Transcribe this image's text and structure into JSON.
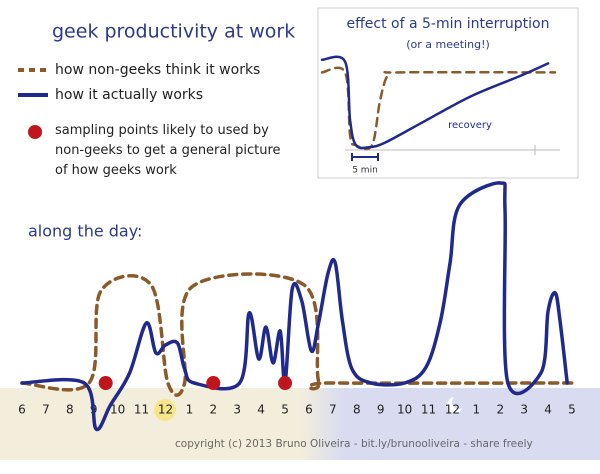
{
  "chart_data": [
    {
      "type": "line",
      "title": "geek productivity at work",
      "annotations": [
        "along the day:",
        "copyright (c) 2013 Bruno Oliveira - bit.ly/brunooliveira - share freely"
      ],
      "xlim": [
        6,
        29
      ],
      "xticks": [
        6,
        7,
        8,
        9,
        10,
        11,
        12,
        {
          "value": 13,
          "label": "1"
        },
        {
          "value": 14,
          "label": "2"
        },
        {
          "value": 15,
          "label": "3"
        },
        {
          "value": 16,
          "label": "4"
        },
        {
          "value": 17,
          "label": "5"
        },
        {
          "value": 18,
          "label": "6"
        },
        {
          "value": 19,
          "label": "7"
        },
        {
          "value": 20,
          "label": "8"
        },
        {
          "value": 21,
          "label": "9"
        },
        {
          "value": 22,
          "label": "10"
        },
        {
          "value": 23,
          "label": "11"
        },
        {
          "value": 24,
          "label": "12"
        },
        {
          "value": 25,
          "label": "1"
        },
        {
          "value": 26,
          "label": "2"
        },
        {
          "value": 27,
          "label": "3"
        },
        {
          "value": 28,
          "label": "4"
        },
        {
          "value": 29,
          "label": "5"
        }
      ],
      "ylim": [
        -30,
        100
      ],
      "series": [
        {
          "name": "how non-geeks think it works",
          "color": "#8b5a2b",
          "dashed": true,
          "x": [
            6.0,
            8.8,
            9.3,
            11.4,
            12.1,
            12.8,
            13.1,
            17.8,
            18.4,
            18.9,
            29.0
          ],
          "values": [
            0,
            0,
            46,
            49,
            0,
            0,
            48,
            49,
            1,
            0,
            0
          ]
        },
        {
          "name": "how it actually works",
          "color": "#1f2a8c",
          "x": [
            6.0,
            8.6,
            9.1,
            9.7,
            10.5,
            11.2,
            11.6,
            12.0,
            12.5,
            12.8,
            13.2,
            15.1,
            15.5,
            15.9,
            16.2,
            16.5,
            16.8,
            17.0,
            17.3,
            17.7,
            18.1,
            18.4,
            18.8,
            19.1,
            19.4,
            19.8,
            20.6,
            22.0,
            22.9,
            23.5,
            23.9,
            24.3,
            26.0,
            26.2,
            26.3,
            27.7,
            28.0,
            28.3,
            28.5,
            28.8
          ],
          "values": [
            0,
            0,
            -23,
            -11,
            5,
            30,
            15,
            19,
            20,
            7,
            0,
            0,
            35,
            12,
            28,
            10,
            26,
            0,
            47,
            41,
            16,
            30,
            55,
            60,
            31,
            7,
            0,
            0,
            8,
            31,
            60,
            89,
            100,
            86,
            1,
            5,
            36,
            45,
            31,
            0
          ]
        },
        {
          "name": "sampling points likely to used by non-geeks to get a general picture of how geeks work",
          "color": "#c0151d",
          "type": "scatter",
          "x": [
            9.5,
            14.0,
            17.0
          ],
          "values": [
            0,
            0,
            0
          ]
        }
      ]
    },
    {
      "type": "line",
      "title": "effect of a 5-min interruption",
      "subtitle": "(or a meeting!)",
      "annotations": [
        "recovery",
        "5 min"
      ],
      "xlim": [
        0,
        100
      ],
      "ylim": [
        0,
        100
      ],
      "series": [
        {
          "color": "#8b5a2b",
          "dashed": true,
          "x": [
            0,
            9.7,
            11.8,
            14.3,
            21,
            24.4,
            27.7,
            32.8,
            97.9
          ],
          "values": [
            84,
            84,
            14,
            3,
            3,
            53,
            81,
            84,
            84
          ]
        },
        {
          "color": "#1f2a8c",
          "x": [
            0,
            9.7,
            11.8,
            14.3,
            20.2,
            26.5,
            41.2,
            62.2,
            83.2,
            95
          ],
          "values": [
            98,
            96,
            31,
            3,
            1,
            6,
            27,
            57,
            80,
            94
          ]
        }
      ]
    }
  ]
}
